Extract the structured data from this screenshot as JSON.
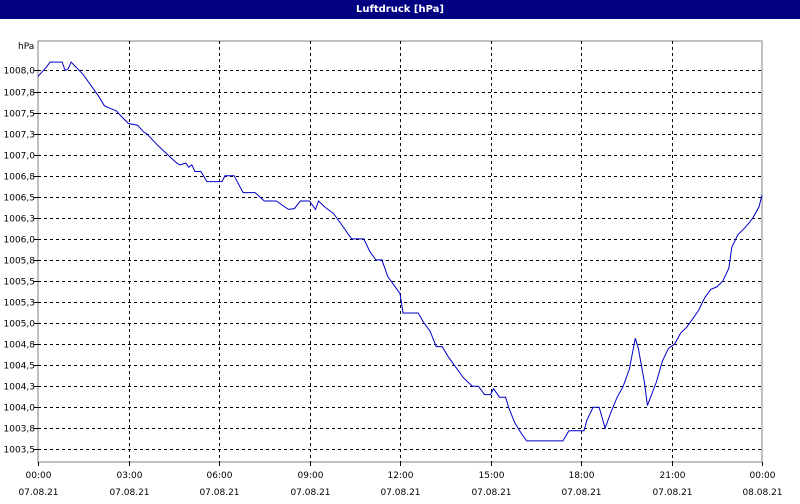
{
  "chart_data": {
    "type": "line",
    "title": "Luftdruck [hPa]",
    "ylabel": "hPa",
    "xlabel": "",
    "ylim": [
      1003.35,
      1008.35
    ],
    "xlim": [
      0,
      24
    ],
    "grid": true,
    "line_color": "#0000c8",
    "y_ticks": [
      {
        "value": 1003.5,
        "label": "1003,5"
      },
      {
        "value": 1003.75,
        "label": "1003,8"
      },
      {
        "value": 1004.0,
        "label": "1004,0"
      },
      {
        "value": 1004.25,
        "label": "1004,3"
      },
      {
        "value": 1004.5,
        "label": "1004,5"
      },
      {
        "value": 1004.75,
        "label": "1004,8"
      },
      {
        "value": 1005.0,
        "label": "1005,0"
      },
      {
        "value": 1005.25,
        "label": "1005,3"
      },
      {
        "value": 1005.5,
        "label": "1005,5"
      },
      {
        "value": 1005.75,
        "label": "1005,8"
      },
      {
        "value": 1006.0,
        "label": "1006,0"
      },
      {
        "value": 1006.25,
        "label": "1006,3"
      },
      {
        "value": 1006.5,
        "label": "1006,5"
      },
      {
        "value": 1006.75,
        "label": "1006,8"
      },
      {
        "value": 1007.0,
        "label": "1007,0"
      },
      {
        "value": 1007.25,
        "label": "1007,3"
      },
      {
        "value": 1007.5,
        "label": "1007,5"
      },
      {
        "value": 1007.75,
        "label": "1007,8"
      },
      {
        "value": 1008.0,
        "label": "1008,0"
      }
    ],
    "x_ticks": [
      {
        "value": 0,
        "time": "00:00",
        "date": "07.08.21"
      },
      {
        "value": 3,
        "time": "03:00",
        "date": "07.08.21"
      },
      {
        "value": 6,
        "time": "06:00",
        "date": "07.08.21"
      },
      {
        "value": 9,
        "time": "09:00",
        "date": "07.08.21"
      },
      {
        "value": 12,
        "time": "12:00",
        "date": "07.08.21"
      },
      {
        "value": 15,
        "time": "15:00",
        "date": "07.08.21"
      },
      {
        "value": 18,
        "time": "18:00",
        "date": "07.08.21"
      },
      {
        "value": 21,
        "time": "21:00",
        "date": "07.08.21"
      },
      {
        "value": 24,
        "time": "00:00",
        "date": "08.08.21"
      }
    ],
    "series": [
      {
        "values": [
          [
            0.0,
            1007.93
          ],
          [
            0.3,
            1008.05
          ],
          [
            0.4,
            1008.1
          ],
          [
            0.8,
            1008.1
          ],
          [
            0.9,
            1008.0
          ],
          [
            1.0,
            1008.02
          ],
          [
            1.1,
            1008.1
          ],
          [
            1.5,
            1007.95
          ],
          [
            1.8,
            1007.8
          ],
          [
            2.0,
            1007.7
          ],
          [
            2.2,
            1007.58
          ],
          [
            2.4,
            1007.55
          ],
          [
            2.6,
            1007.52
          ],
          [
            2.8,
            1007.44
          ],
          [
            3.0,
            1007.37
          ],
          [
            3.3,
            1007.35
          ],
          [
            3.5,
            1007.27
          ],
          [
            3.6,
            1007.25
          ],
          [
            4.0,
            1007.1
          ],
          [
            4.3,
            1007.0
          ],
          [
            4.6,
            1006.9
          ],
          [
            4.7,
            1006.88
          ],
          [
            4.9,
            1006.9
          ],
          [
            5.0,
            1006.85
          ],
          [
            5.1,
            1006.88
          ],
          [
            5.2,
            1006.8
          ],
          [
            5.4,
            1006.8
          ],
          [
            5.6,
            1006.68
          ],
          [
            5.9,
            1006.68
          ],
          [
            6.1,
            1006.68
          ],
          [
            6.2,
            1006.75
          ],
          [
            6.5,
            1006.75
          ],
          [
            6.8,
            1006.55
          ],
          [
            7.2,
            1006.55
          ],
          [
            7.5,
            1006.45
          ],
          [
            7.9,
            1006.45
          ],
          [
            8.3,
            1006.35
          ],
          [
            8.5,
            1006.36
          ],
          [
            8.7,
            1006.45
          ],
          [
            9.0,
            1006.45
          ],
          [
            9.2,
            1006.35
          ],
          [
            9.3,
            1006.45
          ],
          [
            9.5,
            1006.38
          ],
          [
            9.8,
            1006.3
          ],
          [
            10.0,
            1006.2
          ],
          [
            10.2,
            1006.1
          ],
          [
            10.4,
            1006.0
          ],
          [
            10.6,
            1006.0
          ],
          [
            10.8,
            1006.0
          ],
          [
            11.0,
            1005.85
          ],
          [
            11.2,
            1005.75
          ],
          [
            11.4,
            1005.75
          ],
          [
            11.6,
            1005.55
          ],
          [
            11.8,
            1005.45
          ],
          [
            12.0,
            1005.35
          ],
          [
            12.1,
            1005.12
          ],
          [
            12.6,
            1005.12
          ],
          [
            12.8,
            1005.0
          ],
          [
            13.0,
            1004.9
          ],
          [
            13.2,
            1004.72
          ],
          [
            13.4,
            1004.72
          ],
          [
            13.6,
            1004.6
          ],
          [
            13.8,
            1004.5
          ],
          [
            14.1,
            1004.35
          ],
          [
            14.4,
            1004.25
          ],
          [
            14.6,
            1004.25
          ],
          [
            14.8,
            1004.15
          ],
          [
            15.0,
            1004.15
          ],
          [
            15.1,
            1004.22
          ],
          [
            15.3,
            1004.12
          ],
          [
            15.5,
            1004.12
          ],
          [
            15.6,
            1004.0
          ],
          [
            15.8,
            1003.82
          ],
          [
            16.0,
            1003.7
          ],
          [
            16.2,
            1003.6
          ],
          [
            16.5,
            1003.6
          ],
          [
            17.0,
            1003.6
          ],
          [
            17.4,
            1003.6
          ],
          [
            17.6,
            1003.72
          ],
          [
            17.9,
            1003.72
          ],
          [
            18.1,
            1003.72
          ],
          [
            18.2,
            1003.85
          ],
          [
            18.4,
            1004.0
          ],
          [
            18.6,
            1004.0
          ],
          [
            18.7,
            1003.88
          ],
          [
            18.8,
            1003.75
          ],
          [
            18.9,
            1003.85
          ],
          [
            19.0,
            1003.95
          ],
          [
            19.2,
            1004.12
          ],
          [
            19.4,
            1004.25
          ],
          [
            19.6,
            1004.45
          ],
          [
            19.8,
            1004.82
          ],
          [
            19.9,
            1004.7
          ],
          [
            20.1,
            1004.3
          ],
          [
            20.2,
            1004.02
          ],
          [
            20.5,
            1004.3
          ],
          [
            20.7,
            1004.55
          ],
          [
            20.9,
            1004.7
          ],
          [
            21.1,
            1004.75
          ],
          [
            21.3,
            1004.88
          ],
          [
            21.5,
            1004.95
          ],
          [
            21.7,
            1005.05
          ],
          [
            21.9,
            1005.15
          ],
          [
            22.1,
            1005.3
          ],
          [
            22.3,
            1005.4
          ],
          [
            22.5,
            1005.43
          ],
          [
            22.7,
            1005.5
          ],
          [
            22.9,
            1005.65
          ],
          [
            23.0,
            1005.9
          ],
          [
            23.2,
            1006.05
          ],
          [
            23.4,
            1006.12
          ],
          [
            23.6,
            1006.2
          ],
          [
            23.7,
            1006.25
          ],
          [
            23.9,
            1006.38
          ],
          [
            24.0,
            1006.52
          ]
        ]
      }
    ]
  }
}
